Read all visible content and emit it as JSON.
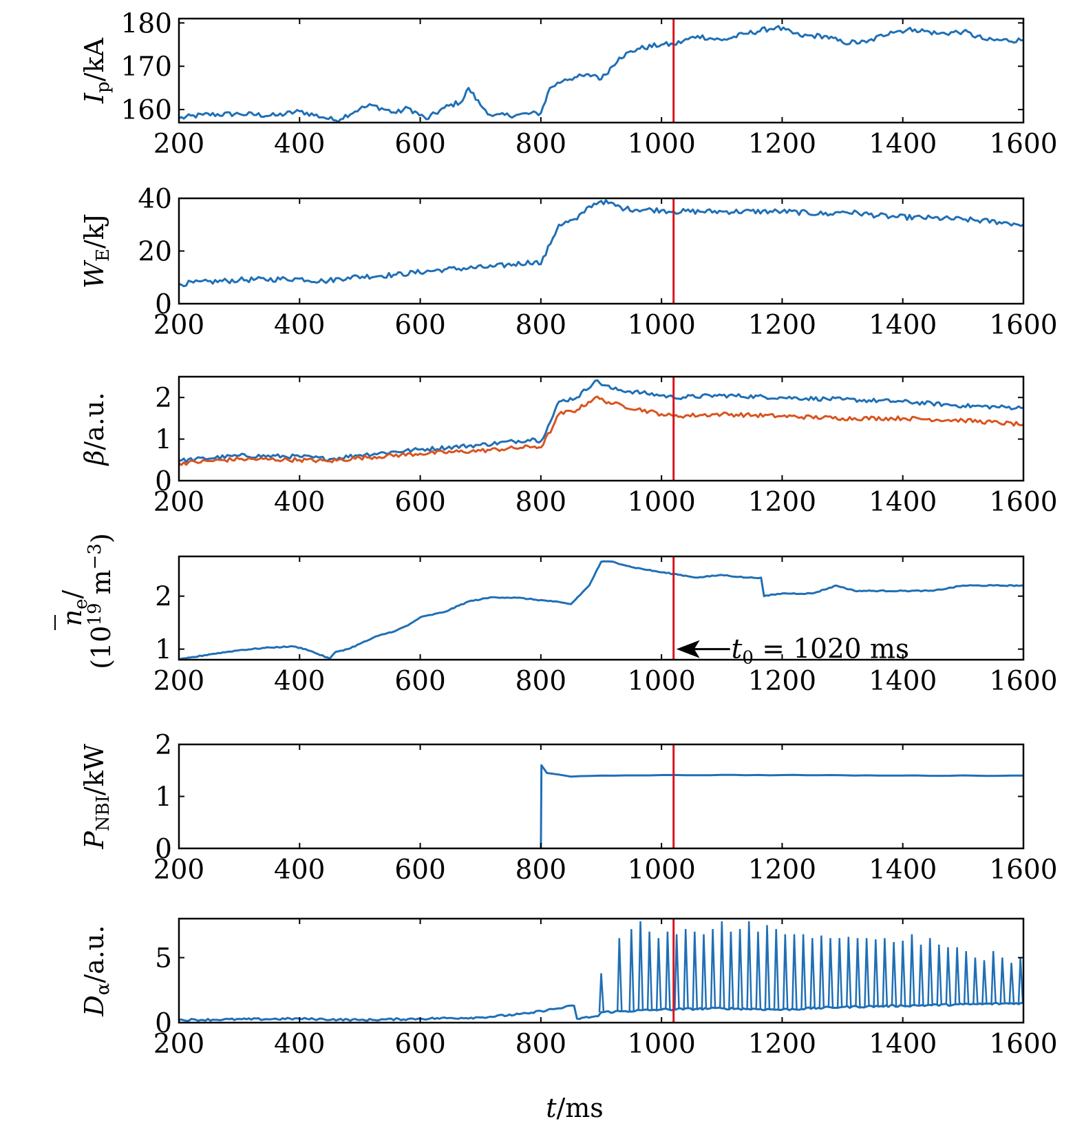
{
  "figure": {
    "xlabel_symbol": "t",
    "xlabel_unit": "/ms",
    "colors": {
      "blue": "#1f6fb5",
      "orange": "#d9541e",
      "red": "#d9141e",
      "black": "#000000"
    }
  },
  "chart_data": [
    {
      "type": "line",
      "ylabel": {
        "symbol": "I",
        "sub": "p",
        "unit": "/kA"
      },
      "xlim": [
        200,
        1600
      ],
      "xticks": [
        200,
        400,
        600,
        800,
        1000,
        1200,
        1400,
        1600
      ],
      "ylim": [
        157,
        181
      ],
      "yticks": [
        160,
        170,
        180
      ],
      "marker_x": 1020,
      "series": [
        {
          "name": "Ip",
          "color": "#1f6fb5",
          "points": [
            [
              200,
              158
            ],
            [
              240,
              158.8
            ],
            [
              300,
              159
            ],
            [
              360,
              158.6
            ],
            [
              400,
              159.6
            ],
            [
              440,
              158.2
            ],
            [
              460,
              157.5
            ],
            [
              500,
              160.2
            ],
            [
              520,
              161
            ],
            [
              560,
              159.2
            ],
            [
              580,
              160.4
            ],
            [
              610,
              157.8
            ],
            [
              640,
              160.4
            ],
            [
              670,
              162
            ],
            [
              680,
              165
            ],
            [
              700,
              161
            ],
            [
              720,
              158.5
            ],
            [
              760,
              158.8
            ],
            [
              800,
              159.2
            ],
            [
              815,
              165
            ],
            [
              840,
              167
            ],
            [
              860,
              167.5
            ],
            [
              890,
              168
            ],
            [
              900,
              167
            ],
            [
              930,
              172
            ],
            [
              960,
              174
            ],
            [
              1000,
              175
            ],
            [
              1020,
              175
            ],
            [
              1060,
              177
            ],
            [
              1100,
              176
            ],
            [
              1140,
              177.5
            ],
            [
              1190,
              179
            ],
            [
              1230,
              177
            ],
            [
              1270,
              177
            ],
            [
              1300,
              175.5
            ],
            [
              1340,
              175.5
            ],
            [
              1380,
              178
            ],
            [
              1420,
              178.5
            ],
            [
              1460,
              177.5
            ],
            [
              1500,
              178
            ],
            [
              1540,
              176
            ],
            [
              1600,
              176
            ]
          ]
        }
      ]
    },
    {
      "type": "line",
      "ylabel": {
        "symbol": "W",
        "sub": "E",
        "unit": "/kJ"
      },
      "xlim": [
        200,
        1600
      ],
      "xticks": [
        200,
        400,
        600,
        800,
        1000,
        1200,
        1400,
        1600
      ],
      "ylim": [
        0,
        40
      ],
      "yticks": [
        0,
        20,
        40
      ],
      "marker_x": 1020,
      "series": [
        {
          "name": "WE",
          "color": "#1f6fb5",
          "points": [
            [
              200,
              7.5
            ],
            [
              300,
              9
            ],
            [
              400,
              9.5
            ],
            [
              440,
              8.5
            ],
            [
              480,
              10
            ],
            [
              560,
              11
            ],
            [
              640,
              13
            ],
            [
              720,
              14
            ],
            [
              790,
              16
            ],
            [
              800,
              15
            ],
            [
              820,
              25
            ],
            [
              830,
              30
            ],
            [
              860,
              32
            ],
            [
              880,
              37
            ],
            [
              900,
              39
            ],
            [
              940,
              36
            ],
            [
              1000,
              35.5
            ],
            [
              1020,
              35
            ],
            [
              1100,
              35
            ],
            [
              1200,
              35
            ],
            [
              1280,
              34
            ],
            [
              1300,
              35
            ],
            [
              1380,
              33
            ],
            [
              1450,
              32.5
            ],
            [
              1500,
              32
            ],
            [
              1560,
              31
            ],
            [
              1600,
              30
            ]
          ]
        }
      ]
    },
    {
      "type": "line",
      "ylabel": {
        "symbol": "β",
        "sub": "",
        "unit": "/a.u."
      },
      "xlim": [
        200,
        1600
      ],
      "xticks": [
        200,
        400,
        600,
        800,
        1000,
        1200,
        1400,
        1600
      ],
      "ylim": [
        0,
        2.5
      ],
      "yticks": [
        0,
        1,
        2
      ],
      "marker_x": 1020,
      "series": [
        {
          "name": "beta-blue",
          "color": "#1f6fb5",
          "points": [
            [
              200,
              0.48
            ],
            [
              300,
              0.6
            ],
            [
              400,
              0.58
            ],
            [
              450,
              0.52
            ],
            [
              500,
              0.62
            ],
            [
              600,
              0.75
            ],
            [
              700,
              0.86
            ],
            [
              790,
              1.0
            ],
            [
              800,
              0.95
            ],
            [
              820,
              1.55
            ],
            [
              830,
              1.9
            ],
            [
              860,
              2.0
            ],
            [
              890,
              2.4
            ],
            [
              920,
              2.2
            ],
            [
              1000,
              2.05
            ],
            [
              1020,
              2.0
            ],
            [
              1100,
              2.05
            ],
            [
              1200,
              2.0
            ],
            [
              1300,
              1.95
            ],
            [
              1400,
              1.9
            ],
            [
              1500,
              1.8
            ],
            [
              1600,
              1.75
            ]
          ]
        },
        {
          "name": "beta-orange",
          "color": "#d9541e",
          "points": [
            [
              200,
              0.42
            ],
            [
              300,
              0.52
            ],
            [
              400,
              0.5
            ],
            [
              450,
              0.47
            ],
            [
              500,
              0.55
            ],
            [
              600,
              0.65
            ],
            [
              700,
              0.72
            ],
            [
              790,
              0.82
            ],
            [
              800,
              0.8
            ],
            [
              820,
              1.3
            ],
            [
              830,
              1.6
            ],
            [
              860,
              1.7
            ],
            [
              890,
              2.0
            ],
            [
              920,
              1.85
            ],
            [
              1000,
              1.6
            ],
            [
              1020,
              1.55
            ],
            [
              1100,
              1.6
            ],
            [
              1200,
              1.55
            ],
            [
              1300,
              1.5
            ],
            [
              1400,
              1.5
            ],
            [
              1500,
              1.45
            ],
            [
              1600,
              1.35
            ]
          ]
        }
      ]
    },
    {
      "type": "line",
      "ylabel": {
        "symbol": "n",
        "sub": "e",
        "line1": "/",
        "line2_base": "(10",
        "line2_exp": "19",
        "line2_unit": " m",
        "line2_exp2": "−3",
        "line2_close": ")"
      },
      "xlim": [
        200,
        1600
      ],
      "xticks": [
        200,
        400,
        600,
        800,
        1000,
        1200,
        1400,
        1600
      ],
      "ylim": [
        0.8,
        2.75
      ],
      "yticks": [
        1,
        2
      ],
      "marker_x": 1020,
      "annotation": {
        "text_symbol": "t",
        "text_sub": "0",
        "text_rest": " = 1020 ms",
        "x": 1020,
        "y": 1.0
      },
      "series": [
        {
          "name": "ne",
          "color": "#1f6fb5",
          "points": [
            [
              200,
              0.8
            ],
            [
              250,
              0.9
            ],
            [
              300,
              0.98
            ],
            [
              350,
              1.03
            ],
            [
              390,
              1.05
            ],
            [
              410,
              1.0
            ],
            [
              450,
              0.82
            ],
            [
              460,
              0.95
            ],
            [
              480,
              1.0
            ],
            [
              500,
              1.1
            ],
            [
              530,
              1.25
            ],
            [
              560,
              1.35
            ],
            [
              580,
              1.45
            ],
            [
              600,
              1.6
            ],
            [
              640,
              1.7
            ],
            [
              680,
              1.9
            ],
            [
              720,
              1.98
            ],
            [
              760,
              1.97
            ],
            [
              820,
              1.9
            ],
            [
              850,
              1.85
            ],
            [
              880,
              2.2
            ],
            [
              900,
              2.65
            ],
            [
              920,
              2.65
            ],
            [
              950,
              2.55
            ],
            [
              1000,
              2.45
            ],
            [
              1020,
              2.42
            ],
            [
              1060,
              2.35
            ],
            [
              1100,
              2.4
            ],
            [
              1140,
              2.35
            ],
            [
              1165,
              2.35
            ],
            [
              1170,
              2.0
            ],
            [
              1200,
              2.05
            ],
            [
              1250,
              2.05
            ],
            [
              1290,
              2.2
            ],
            [
              1320,
              2.1
            ],
            [
              1400,
              2.1
            ],
            [
              1450,
              2.1
            ],
            [
              1500,
              2.2
            ],
            [
              1550,
              2.2
            ],
            [
              1600,
              2.2
            ]
          ]
        }
      ]
    },
    {
      "type": "line",
      "ylabel": {
        "symbol": "P",
        "sub": "NBI",
        "unit": "/kW"
      },
      "xlim": [
        200,
        1600
      ],
      "xticks": [
        200,
        400,
        600,
        800,
        1000,
        1200,
        1400,
        1600
      ],
      "ylim": [
        0,
        2
      ],
      "yticks": [
        0,
        1,
        2
      ],
      "marker_x": 1020,
      "series": [
        {
          "name": "PNBI",
          "color": "#1f6fb5",
          "points": [
            [
              800,
              0
            ],
            [
              801,
              1.6
            ],
            [
              810,
              1.45
            ],
            [
              850,
              1.38
            ],
            [
              900,
              1.4
            ],
            [
              1000,
              1.41
            ],
            [
              1200,
              1.41
            ],
            [
              1400,
              1.4
            ],
            [
              1600,
              1.4
            ]
          ]
        }
      ]
    },
    {
      "type": "line",
      "ylabel": {
        "symbol": "D",
        "sub": "α",
        "unit": "/a.u."
      },
      "xlim": [
        200,
        1600
      ],
      "xticks": [
        200,
        400,
        600,
        800,
        1000,
        1200,
        1400,
        1600
      ],
      "ylim": [
        0,
        8
      ],
      "yticks": [
        0,
        5
      ],
      "marker_x": 1020,
      "series": [
        {
          "name": "Dalpha-baseline",
          "color": "#1f6fb5",
          "points": [
            [
              200,
              0.2
            ],
            [
              400,
              0.3
            ],
            [
              500,
              0.2
            ],
            [
              600,
              0.3
            ],
            [
              700,
              0.4
            ],
            [
              780,
              0.7
            ],
            [
              800,
              0.9
            ],
            [
              830,
              1.1
            ],
            [
              855,
              1.3
            ],
            [
              860,
              0.3
            ],
            [
              895,
              0.5
            ],
            [
              900,
              0.8
            ],
            [
              1000,
              1.0
            ],
            [
              1100,
              1.1
            ],
            [
              1200,
              1.0
            ],
            [
              1300,
              1.2
            ],
            [
              1400,
              1.3
            ],
            [
              1500,
              1.4
            ],
            [
              1600,
              1.5
            ]
          ]
        }
      ],
      "spikes": {
        "color": "#1f6fb5",
        "peaks": [
          [
            900,
            3.8
          ],
          [
            930,
            6.5
          ],
          [
            950,
            7.2
          ],
          [
            965,
            7.8
          ],
          [
            980,
            7.0
          ],
          [
            995,
            6.5
          ],
          [
            1010,
            7.0
          ],
          [
            1025,
            6.8
          ],
          [
            1040,
            7.2
          ],
          [
            1055,
            7.0
          ],
          [
            1070,
            6.8
          ],
          [
            1085,
            7.2
          ],
          [
            1100,
            7.8
          ],
          [
            1115,
            7.0
          ],
          [
            1130,
            7.2
          ],
          [
            1145,
            7.8
          ],
          [
            1160,
            7.0
          ],
          [
            1175,
            7.5
          ],
          [
            1190,
            7.2
          ],
          [
            1205,
            6.8
          ],
          [
            1220,
            6.8
          ],
          [
            1235,
            6.8
          ],
          [
            1250,
            6.5
          ],
          [
            1265,
            6.7
          ],
          [
            1280,
            6.5
          ],
          [
            1295,
            6.5
          ],
          [
            1310,
            6.6
          ],
          [
            1325,
            6.5
          ],
          [
            1340,
            6.5
          ],
          [
            1355,
            6.4
          ],
          [
            1370,
            6.5
          ],
          [
            1385,
            6.2
          ],
          [
            1400,
            6.3
          ],
          [
            1415,
            6.8
          ],
          [
            1430,
            6.0
          ],
          [
            1445,
            6.5
          ],
          [
            1460,
            6.0
          ],
          [
            1475,
            5.8
          ],
          [
            1490,
            5.8
          ],
          [
            1505,
            5.5
          ],
          [
            1520,
            5.0
          ],
          [
            1535,
            4.8
          ],
          [
            1550,
            5.5
          ],
          [
            1565,
            5.0
          ],
          [
            1580,
            4.6
          ],
          [
            1595,
            5.0
          ]
        ]
      }
    }
  ]
}
